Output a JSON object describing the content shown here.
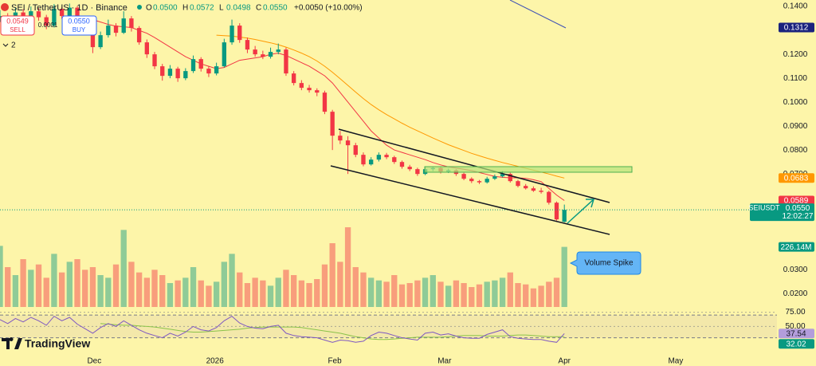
{
  "header": {
    "symbol": "SEI / TetherUS · 1D · Binance",
    "ohlc": [
      {
        "key": "O",
        "value": "0.0500"
      },
      {
        "key": "H",
        "value": "0.0572"
      },
      {
        "key": "L",
        "value": "0.0498"
      },
      {
        "key": "C",
        "value": "0.0550"
      }
    ],
    "change": "+0.0050 (+10.00%)",
    "indicators_count": "2"
  },
  "trade": {
    "sell_price": "0.0549",
    "sell": "SELL",
    "spread": "0.0001",
    "buy_price": "0.0550",
    "buy": "BUY"
  },
  "branding": "TradingView",
  "annotation": "Volume Spike",
  "chart_data": {
    "type": "candlestick",
    "up_color": "#089981",
    "down_color": "#f23645",
    "xlim": [
      0,
      100.5
    ],
    "xticks": [
      {
        "value": 12.2,
        "label": "Dec"
      },
      {
        "value": 27.8,
        "label": "2026"
      },
      {
        "value": 43.3,
        "label": "Feb"
      },
      {
        "value": 57.5,
        "label": "Mar"
      },
      {
        "value": 73,
        "label": "Apr"
      },
      {
        "value": 87.4,
        "label": "May"
      }
    ],
    "ylim": [
      0.0144,
      0.1427
    ],
    "yticks": [
      {
        "value": 0.14,
        "label": "0.1400"
      },
      {
        "value": 0.12,
        "label": "0.1200"
      },
      {
        "value": 0.11,
        "label": "0.1100"
      },
      {
        "value": 0.1,
        "label": "0.1000"
      },
      {
        "value": 0.09,
        "label": "0.0900"
      },
      {
        "value": 0.08,
        "label": "0.0800"
      },
      {
        "value": 0.07,
        "label": "0.0700"
      },
      {
        "value": 0.03,
        "label": "0.0300"
      },
      {
        "value": 0.02,
        "label": "0.0200"
      }
    ],
    "ohlc": {
      "open": [
        0.135,
        0.136,
        0.133,
        0.1375,
        0.135,
        0.138,
        0.1355,
        0.132,
        0.139,
        0.136,
        0.1395,
        0.134,
        0.13,
        0.123,
        0.128,
        0.132,
        0.129,
        0.135,
        0.131,
        0.125,
        0.12,
        0.115,
        0.111,
        0.114,
        0.11,
        0.113,
        0.118,
        0.114,
        0.112,
        0.115,
        0.125,
        0.132,
        0.126,
        0.122,
        0.12,
        0.119,
        0.121,
        0.122,
        0.112,
        0.108,
        0.106,
        0.105,
        0.104,
        0.096,
        0.086,
        0.084,
        0.082,
        0.078,
        0.074,
        0.076,
        0.078,
        0.077,
        0.075,
        0.073,
        0.072,
        0.07,
        0.072,
        0.0725,
        0.071,
        0.0715,
        0.07,
        0.068,
        0.067,
        0.0665,
        0.068,
        0.069,
        0.07,
        0.067,
        0.065,
        0.064,
        0.063,
        0.0625,
        0.058,
        0.05
      ],
      "high": [
        0.1385,
        0.1372,
        0.1395,
        0.1388,
        0.14,
        0.1392,
        0.1365,
        0.141,
        0.1398,
        0.1412,
        0.1402,
        0.135,
        0.131,
        0.1295,
        0.1345,
        0.133,
        0.138,
        0.136,
        0.1318,
        0.1262,
        0.121,
        0.116,
        0.1155,
        0.1148,
        0.1142,
        0.1195,
        0.1188,
        0.115,
        0.1165,
        0.1265,
        0.1345,
        0.133,
        0.127,
        0.1235,
        0.1215,
        0.1228,
        0.1245,
        0.1228,
        0.113,
        0.1092,
        0.1072,
        0.1058,
        0.1048,
        0.0968,
        0.088,
        0.0858,
        0.083,
        0.079,
        0.077,
        0.079,
        0.0788,
        0.0776,
        0.0756,
        0.0738,
        0.0726,
        0.073,
        0.0732,
        0.073,
        0.0722,
        0.072,
        0.0705,
        0.0686,
        0.0675,
        0.0688,
        0.0698,
        0.0712,
        0.0705,
        0.0676,
        0.0658,
        0.0648,
        0.0642,
        0.063,
        0.0585,
        0.0572
      ],
      "low": [
        0.1335,
        0.1318,
        0.1322,
        0.1338,
        0.1342,
        0.134,
        0.1305,
        0.1312,
        0.1348,
        0.1352,
        0.133,
        0.128,
        0.1205,
        0.1222,
        0.127,
        0.1275,
        0.1285,
        0.1295,
        0.124,
        0.1185,
        0.1138,
        0.109,
        0.11,
        0.1085,
        0.1092,
        0.1122,
        0.1128,
        0.1105,
        0.1112,
        0.1145,
        0.124,
        0.1248,
        0.1205,
        0.119,
        0.118,
        0.1182,
        0.12,
        0.111,
        0.107,
        0.105,
        0.104,
        0.1025,
        0.095,
        0.08,
        0.0825,
        0.07,
        0.077,
        0.0732,
        0.0735,
        0.0752,
        0.0762,
        0.0742,
        0.0722,
        0.0712,
        0.0692,
        0.0695,
        0.0712,
        0.0702,
        0.0704,
        0.0692,
        0.0674,
        0.0662,
        0.0658,
        0.066,
        0.0675,
        0.0685,
        0.0664,
        0.0644,
        0.0635,
        0.0625,
        0.0618,
        0.0572,
        0.0505,
        0.0498
      ],
      "close": [
        0.136,
        0.133,
        0.1375,
        0.135,
        0.138,
        0.1355,
        0.132,
        0.139,
        0.136,
        0.1395,
        0.134,
        0.13,
        0.123,
        0.128,
        0.132,
        0.129,
        0.135,
        0.131,
        0.125,
        0.12,
        0.115,
        0.111,
        0.114,
        0.11,
        0.113,
        0.118,
        0.114,
        0.112,
        0.115,
        0.125,
        0.132,
        0.126,
        0.122,
        0.12,
        0.119,
        0.121,
        0.122,
        0.112,
        0.108,
        0.106,
        0.105,
        0.104,
        0.096,
        0.086,
        0.084,
        0.082,
        0.078,
        0.074,
        0.076,
        0.078,
        0.077,
        0.075,
        0.073,
        0.072,
        0.07,
        0.072,
        0.0725,
        0.071,
        0.0715,
        0.07,
        0.068,
        0.067,
        0.0665,
        0.068,
        0.069,
        0.07,
        0.067,
        0.065,
        0.064,
        0.063,
        0.0625,
        0.058,
        0.051,
        0.055
      ]
    },
    "last_price": {
      "symbol": "SEIUSDT",
      "label": "0.0550",
      "countdown": "12:02:27"
    },
    "moving_averages": [
      {
        "color": "#f23645",
        "values": [
          null,
          null,
          null,
          null,
          null,
          null,
          null,
          null,
          null,
          null,
          null,
          null,
          0.1345,
          0.1335,
          0.1325,
          0.1318,
          0.1315,
          0.1312,
          0.13,
          0.1288,
          0.127,
          0.125,
          0.123,
          0.121,
          0.119,
          0.1175,
          0.116,
          0.115,
          0.114,
          0.1145,
          0.116,
          0.1175,
          0.118,
          0.1185,
          0.119,
          0.12,
          0.1205,
          0.1195,
          0.118,
          0.1165,
          0.115,
          0.113,
          0.111,
          0.108,
          0.104,
          0.1,
          0.096,
          0.092,
          0.088,
          0.085,
          0.082,
          0.08,
          0.079,
          0.078,
          0.077,
          0.076,
          0.0748,
          0.0738,
          0.073,
          0.0725,
          0.072,
          0.0714,
          0.0706,
          0.0698,
          0.069,
          0.0686,
          0.0684,
          0.0684,
          0.0682,
          0.0676,
          0.0668,
          0.064,
          0.0612,
          0.0589
        ]
      },
      {
        "color": "#ff9800",
        "values": [
          null,
          null,
          null,
          null,
          null,
          null,
          null,
          null,
          null,
          null,
          null,
          null,
          null,
          null,
          null,
          null,
          null,
          null,
          null,
          null,
          null,
          null,
          null,
          null,
          null,
          null,
          null,
          null,
          0.128,
          0.1278,
          0.1276,
          0.1272,
          0.1268,
          0.1262,
          0.1255,
          0.1248,
          0.124,
          0.123,
          0.1218,
          0.1205,
          0.119,
          0.1172,
          0.115,
          0.1125,
          0.1098,
          0.107,
          0.1042,
          0.1015,
          0.099,
          0.0968,
          0.0948,
          0.093,
          0.0912,
          0.0895,
          0.088,
          0.0865,
          0.085,
          0.0836,
          0.0822,
          0.081,
          0.0798,
          0.0786,
          0.0776,
          0.0766,
          0.0757,
          0.0748,
          0.074,
          0.0732,
          0.0724,
          0.0716,
          0.0708,
          0.07,
          0.0691,
          0.0683
        ]
      }
    ],
    "drawing_price_labels": [
      {
        "value": 0.1312,
        "color": "#1a237e"
      }
    ],
    "volume": {
      "ylim": [
        0,
        300
      ],
      "last_value_label": "226.14M",
      "values": [
        230,
        150,
        120,
        180,
        140,
        160,
        110,
        200,
        130,
        170,
        180,
        140,
        150,
        120,
        110,
        160,
        290,
        170,
        130,
        110,
        140,
        120,
        90,
        100,
        110,
        150,
        100,
        80,
        95,
        170,
        200,
        130,
        90,
        110,
        100,
        80,
        110,
        140,
        120,
        100,
        90,
        105,
        160,
        240,
        170,
        300,
        150,
        130,
        110,
        100,
        95,
        120,
        85,
        90,
        100,
        110,
        120,
        95,
        80,
        100,
        90,
        75,
        85,
        95,
        100,
        110,
        130,
        90,
        85,
        70,
        80,
        95,
        110,
        226.14
      ]
    },
    "rsi": {
      "ylim": [
        0,
        80
      ],
      "band": [
        30,
        70
      ],
      "yticks": [
        {
          "value": 75,
          "label": "75.00"
        },
        {
          "value": 50,
          "label": "50.00"
        }
      ],
      "color": "#7e57c2",
      "values": [
        62,
        55,
        64,
        58,
        66,
        60,
        52,
        68,
        60,
        66,
        54,
        46,
        38,
        48,
        55,
        50,
        60,
        52,
        44,
        38,
        34,
        30,
        38,
        33,
        40,
        50,
        44,
        42,
        48,
        60,
        68,
        56,
        50,
        47,
        46,
        50,
        52,
        38,
        34,
        32,
        31,
        30,
        26,
        22,
        26,
        25,
        22,
        24,
        34,
        40,
        38,
        34,
        30,
        28,
        26,
        38,
        40,
        35,
        37,
        33,
        30,
        29,
        29,
        36,
        40,
        44,
        32,
        29,
        28,
        27,
        27,
        24,
        22,
        37.54
      ],
      "ma": {
        "color": "#8bc34a",
        "values": [
          null,
          null,
          null,
          null,
          null,
          null,
          null,
          null,
          null,
          null,
          null,
          null,
          null,
          55,
          54,
          53,
          52,
          52,
          51,
          50,
          49,
          47,
          45,
          43,
          41,
          40,
          40,
          41,
          42,
          43,
          44,
          45,
          47,
          48,
          49,
          49,
          49,
          49,
          49,
          48,
          46,
          44,
          42,
          40,
          38,
          35,
          32,
          30,
          28,
          27,
          27,
          28,
          29,
          30,
          31,
          31,
          31,
          31,
          32,
          33,
          34,
          34,
          34,
          33,
          33,
          33,
          34,
          35,
          35,
          34,
          33,
          32,
          32,
          32.02
        ]
      }
    }
  }
}
